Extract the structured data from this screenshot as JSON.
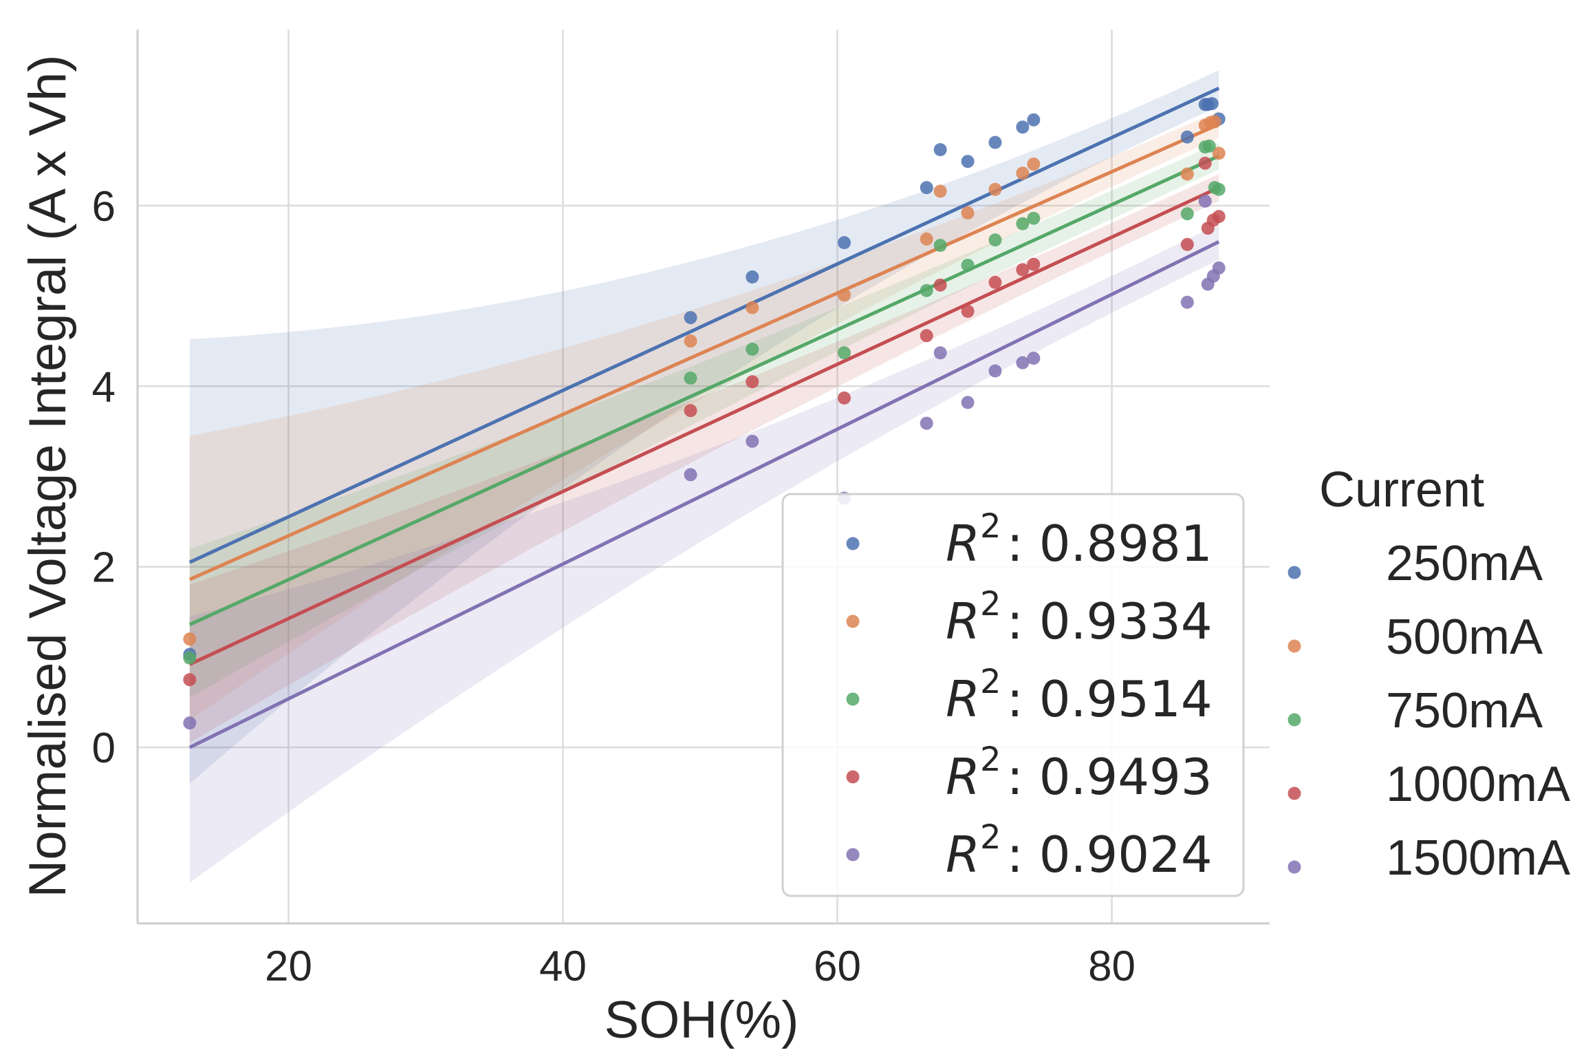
{
  "chart_data": {
    "type": "scatter",
    "xlabel": "SOH(%)",
    "ylabel": "Normalised Voltage Integral  (A x Vh)",
    "xlim": [
      9,
      91.5
    ],
    "ylim": [
      -1.95,
      7.95
    ],
    "xticks": [
      "20",
      "40",
      "60",
      "80"
    ],
    "xtick_values": [
      20,
      40,
      60,
      80
    ],
    "yticks": [
      "0",
      "2",
      "4",
      "6"
    ],
    "ytick_values": [
      0,
      2,
      4,
      6
    ],
    "grid": true,
    "legend_fit": {
      "placement": "lower-right-inside",
      "entries": [
        {
          "r2_prefix": "R",
          "r2_exp": "2",
          "value": ": 0.8981"
        },
        {
          "r2_prefix": "R",
          "r2_exp": "2",
          "value": ": 0.9334"
        },
        {
          "r2_prefix": "R",
          "r2_exp": "2",
          "value": ": 0.9514"
        },
        {
          "r2_prefix": "R",
          "r2_exp": "2",
          "value": ": 0.9493"
        },
        {
          "r2_prefix": "R",
          "r2_exp": "2",
          "value": ": 0.9024"
        }
      ]
    },
    "legend_current": {
      "placement": "right-outside",
      "title": "Current",
      "labels": [
        "250mA",
        "500mA",
        "750mA",
        "1000mA",
        "1500mA"
      ]
    },
    "series": [
      {
        "name": "250mA",
        "color": "#4c72b0",
        "fit": {
          "x0": 12.8,
          "y0": 2.05,
          "x1": 87.8,
          "y1": 7.3
        },
        "band": {
          "x0": 12.8,
          "upper0": 4.52,
          "lower0": -0.4,
          "x1": 87.8,
          "upper1": 7.5,
          "lower1": 7.1
        },
        "points": [
          {
            "x": 12.8,
            "y": 1.03
          },
          {
            "x": 49.3,
            "y": 4.76
          },
          {
            "x": 53.8,
            "y": 5.21
          },
          {
            "x": 60.5,
            "y": 5.59
          },
          {
            "x": 66.5,
            "y": 6.2
          },
          {
            "x": 67.5,
            "y": 6.62
          },
          {
            "x": 69.5,
            "y": 6.49
          },
          {
            "x": 71.5,
            "y": 6.7
          },
          {
            "x": 73.5,
            "y": 6.87
          },
          {
            "x": 74.3,
            "y": 6.95
          },
          {
            "x": 85.5,
            "y": 6.76
          },
          {
            "x": 86.8,
            "y": 7.12
          },
          {
            "x": 87.0,
            "y": 7.12
          },
          {
            "x": 87.3,
            "y": 7.13
          },
          {
            "x": 87.8,
            "y": 6.96
          }
        ]
      },
      {
        "name": "500mA",
        "color": "#dd8452",
        "fit": {
          "x0": 12.8,
          "y0": 1.86,
          "x1": 87.8,
          "y1": 6.9
        },
        "band": {
          "x0": 12.8,
          "upper0": 3.45,
          "lower0": 0.3,
          "x1": 87.8,
          "upper1": 7.05,
          "lower1": 6.75
        },
        "points": [
          {
            "x": 12.8,
            "y": 1.2
          },
          {
            "x": 49.3,
            "y": 4.5
          },
          {
            "x": 53.8,
            "y": 4.87
          },
          {
            "x": 60.5,
            "y": 5.01
          },
          {
            "x": 66.5,
            "y": 5.63
          },
          {
            "x": 67.5,
            "y": 6.16
          },
          {
            "x": 69.5,
            "y": 5.92
          },
          {
            "x": 71.5,
            "y": 6.18
          },
          {
            "x": 73.5,
            "y": 6.36
          },
          {
            "x": 74.3,
            "y": 6.46
          },
          {
            "x": 85.5,
            "y": 6.35
          },
          {
            "x": 86.8,
            "y": 6.89
          },
          {
            "x": 87.2,
            "y": 6.92
          },
          {
            "x": 87.5,
            "y": 6.93
          },
          {
            "x": 87.8,
            "y": 6.58
          }
        ]
      },
      {
        "name": "750mA",
        "color": "#55a868",
        "fit": {
          "x0": 12.8,
          "y0": 1.36,
          "x1": 87.8,
          "y1": 6.55
        },
        "band": {
          "x0": 12.8,
          "upper0": 2.2,
          "lower0": 0.55,
          "x1": 87.8,
          "upper1": 6.7,
          "lower1": 6.4
        },
        "points": [
          {
            "x": 12.8,
            "y": 0.99
          },
          {
            "x": 49.3,
            "y": 4.09
          },
          {
            "x": 53.8,
            "y": 4.41
          },
          {
            "x": 60.5,
            "y": 4.37
          },
          {
            "x": 66.5,
            "y": 5.06
          },
          {
            "x": 67.5,
            "y": 5.56
          },
          {
            "x": 69.5,
            "y": 5.34
          },
          {
            "x": 71.5,
            "y": 5.62
          },
          {
            "x": 73.5,
            "y": 5.8
          },
          {
            "x": 74.3,
            "y": 5.86
          },
          {
            "x": 85.5,
            "y": 5.91
          },
          {
            "x": 86.8,
            "y": 6.65
          },
          {
            "x": 87.1,
            "y": 6.66
          },
          {
            "x": 87.5,
            "y": 6.2
          },
          {
            "x": 87.8,
            "y": 6.18
          }
        ]
      },
      {
        "name": "1000mA",
        "color": "#c44e52",
        "fit": {
          "x0": 12.8,
          "y0": 0.92,
          "x1": 87.8,
          "y1": 6.2
        },
        "band": {
          "x0": 12.8,
          "upper0": 1.8,
          "lower0": 0.05,
          "x1": 87.8,
          "upper1": 6.35,
          "lower1": 6.05
        },
        "points": [
          {
            "x": 12.8,
            "y": 0.75
          },
          {
            "x": 49.3,
            "y": 3.73
          },
          {
            "x": 53.8,
            "y": 4.05
          },
          {
            "x": 60.5,
            "y": 3.87
          },
          {
            "x": 66.5,
            "y": 4.56
          },
          {
            "x": 67.5,
            "y": 5.12
          },
          {
            "x": 69.5,
            "y": 4.83
          },
          {
            "x": 71.5,
            "y": 5.15
          },
          {
            "x": 73.5,
            "y": 5.29
          },
          {
            "x": 74.3,
            "y": 5.35
          },
          {
            "x": 85.5,
            "y": 5.57
          },
          {
            "x": 86.8,
            "y": 6.47
          },
          {
            "x": 87.0,
            "y": 5.75
          },
          {
            "x": 87.4,
            "y": 5.84
          },
          {
            "x": 87.8,
            "y": 5.88
          }
        ]
      },
      {
        "name": "1500mA",
        "color": "#8172b3",
        "fit": {
          "x0": 12.8,
          "y0": 0.0,
          "x1": 87.8,
          "y1": 5.6
        },
        "band": {
          "x0": 12.8,
          "upper0": 1.45,
          "lower0": -1.5,
          "x1": 87.8,
          "upper1": 5.8,
          "lower1": 5.4
        },
        "points": [
          {
            "x": 12.8,
            "y": 0.27
          },
          {
            "x": 49.3,
            "y": 3.02
          },
          {
            "x": 53.8,
            "y": 3.39
          },
          {
            "x": 60.5,
            "y": 2.76
          },
          {
            "x": 66.5,
            "y": 3.59
          },
          {
            "x": 67.5,
            "y": 4.37
          },
          {
            "x": 69.5,
            "y": 3.82
          },
          {
            "x": 71.5,
            "y": 4.17
          },
          {
            "x": 73.5,
            "y": 4.26
          },
          {
            "x": 74.3,
            "y": 4.31
          },
          {
            "x": 85.5,
            "y": 4.93
          },
          {
            "x": 86.8,
            "y": 6.05
          },
          {
            "x": 87.0,
            "y": 5.13
          },
          {
            "x": 87.4,
            "y": 5.22
          },
          {
            "x": 87.8,
            "y": 5.31
          }
        ]
      }
    ]
  }
}
